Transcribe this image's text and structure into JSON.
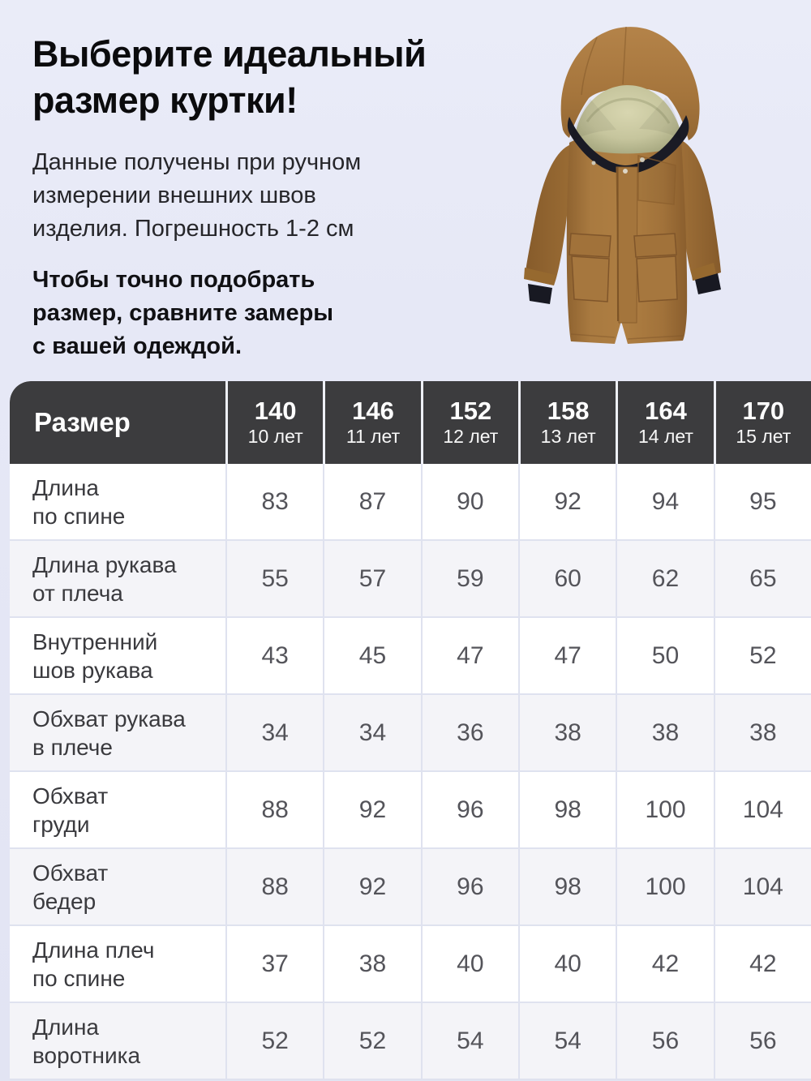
{
  "colors": {
    "page_bg": "#e6e8f6",
    "header_bg": "#3c3c3e",
    "header_text": "#ffffff",
    "row_alt_bg": "#f4f4f8",
    "divider": "#dfe2ef",
    "label_text": "#3a3a3e",
    "value_text": "#54545a",
    "title_text": "#0b0b0d",
    "jacket_main": "#a5743a",
    "jacket_fleece": "#c9c7a0",
    "jacket_collar": "#1a1b25"
  },
  "hero": {
    "title_lines": [
      "Выберите идеальный",
      "размер куртки!"
    ],
    "description_lines": [
      "Данные получены при ручном",
      "измерении внешних швов",
      "изделия. Погрешность 1-2 см"
    ],
    "note_lines": [
      "Чтобы точно подобрать",
      "размер, сравните замеры",
      "с вашей одеждой."
    ]
  },
  "jacket": {
    "icon": "brown-parka-jacket-photo",
    "description": "Детская коричневая парка с капюшоном"
  },
  "table": {
    "corner_label": "Размер",
    "columns": [
      {
        "size": "140",
        "age": "10 лет"
      },
      {
        "size": "146",
        "age": "11 лет"
      },
      {
        "size": "152",
        "age": "12 лет"
      },
      {
        "size": "158",
        "age": "13 лет"
      },
      {
        "size": "164",
        "age": "14 лет"
      },
      {
        "size": "170",
        "age": "15 лет"
      }
    ],
    "rows": [
      {
        "label_lines": [
          "Длина",
          "по спине"
        ],
        "values": [
          "83",
          "87",
          "90",
          "92",
          "94",
          "95"
        ]
      },
      {
        "label_lines": [
          "Длина рукава",
          "от плеча"
        ],
        "values": [
          "55",
          "57",
          "59",
          "60",
          "62",
          "65"
        ]
      },
      {
        "label_lines": [
          "Внутренний",
          "шов рукава"
        ],
        "values": [
          "43",
          "45",
          "47",
          "47",
          "50",
          "52"
        ]
      },
      {
        "label_lines": [
          "Обхват рукава",
          "в плече"
        ],
        "values": [
          "34",
          "34",
          "36",
          "38",
          "38",
          "38"
        ]
      },
      {
        "label_lines": [
          "Обхват",
          "груди"
        ],
        "values": [
          "88",
          "92",
          "96",
          "98",
          "100",
          "104"
        ]
      },
      {
        "label_lines": [
          "Обхват",
          "бедер"
        ],
        "values": [
          "88",
          "92",
          "96",
          "98",
          "100",
          "104"
        ]
      },
      {
        "label_lines": [
          "Длина плеч",
          "по спине"
        ],
        "values": [
          "37",
          "38",
          "40",
          "40",
          "42",
          "42"
        ]
      },
      {
        "label_lines": [
          "Длина",
          "воротника"
        ],
        "values": [
          "52",
          "52",
          "54",
          "54",
          "56",
          "56"
        ]
      }
    ]
  }
}
